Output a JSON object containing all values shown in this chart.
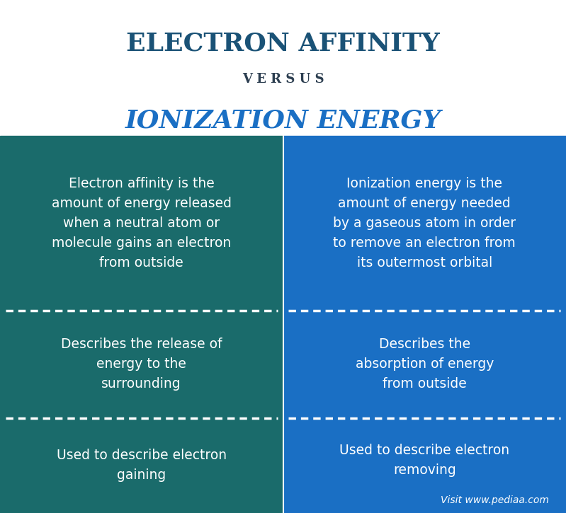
{
  "title1": "ELECTRON AFFINITY",
  "versus": "V E R S U S",
  "title2": "IONIZATION ENERGY",
  "title1_color": "#1a5276",
  "versus_color": "#2c3e50",
  "title2_color": "#1a6fc4",
  "left_bg": "#1a6b6b",
  "right_bg": "#1a6fc4",
  "text_color": "#ffffff",
  "header_bg": "#ffffff",
  "left_col": [
    "Electron affinity is the\namount of energy released\nwhen a neutral atom or\nmolecule gains an electron\nfrom outside",
    "Describes the release of\nenergy to the\nsurrounding",
    "Used to describe electron\ngaining"
  ],
  "right_col": [
    "Ionization energy is the\namount of energy needed\nby a gaseous atom in order\nto remove an electron from\nits outermost orbital",
    "Describes the\nabsorption of energy\nfrom outside",
    "Used to describe electron\nremoving"
  ],
  "watermark": "Visit www.pediaa.com",
  "fig_width": 7.99,
  "fig_height": 7.25,
  "dpi": 100
}
